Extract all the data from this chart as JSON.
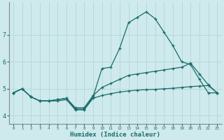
{
  "xlabel": "Humidex (Indice chaleur)",
  "background_color": "#ceeaec",
  "grid_color": "#b8d8dc",
  "line_color": "#1a6b6b",
  "xlim": [
    -0.5,
    23.5
  ],
  "ylim": [
    3.7,
    8.2
  ],
  "yticks": [
    4,
    5,
    6,
    7
  ],
  "xticks": [
    0,
    1,
    2,
    3,
    4,
    5,
    6,
    7,
    8,
    9,
    10,
    11,
    12,
    13,
    14,
    15,
    16,
    17,
    18,
    19,
    20,
    21,
    22,
    23
  ],
  "line_upper_y": [
    4.85,
    5.0,
    4.7,
    4.55,
    4.55,
    4.6,
    4.65,
    4.25,
    4.25,
    4.7,
    5.75,
    5.8,
    6.5,
    7.45,
    7.65,
    7.85,
    7.6,
    7.1,
    6.6,
    6.0,
    5.9,
    5.35,
    4.85,
    4.85
  ],
  "line_mid_y": [
    4.85,
    5.0,
    4.7,
    4.55,
    4.55,
    4.6,
    4.65,
    4.3,
    4.3,
    4.75,
    5.05,
    5.2,
    5.35,
    5.5,
    5.55,
    5.6,
    5.65,
    5.7,
    5.75,
    5.8,
    5.95,
    5.55,
    5.15,
    4.85
  ],
  "line_bottom_y": [
    4.85,
    5.0,
    4.7,
    4.55,
    4.55,
    4.55,
    4.6,
    4.22,
    4.22,
    4.65,
    4.75,
    4.82,
    4.88,
    4.92,
    4.95,
    4.97,
    4.98,
    5.0,
    5.02,
    5.05,
    5.08,
    5.1,
    5.12,
    4.85
  ]
}
